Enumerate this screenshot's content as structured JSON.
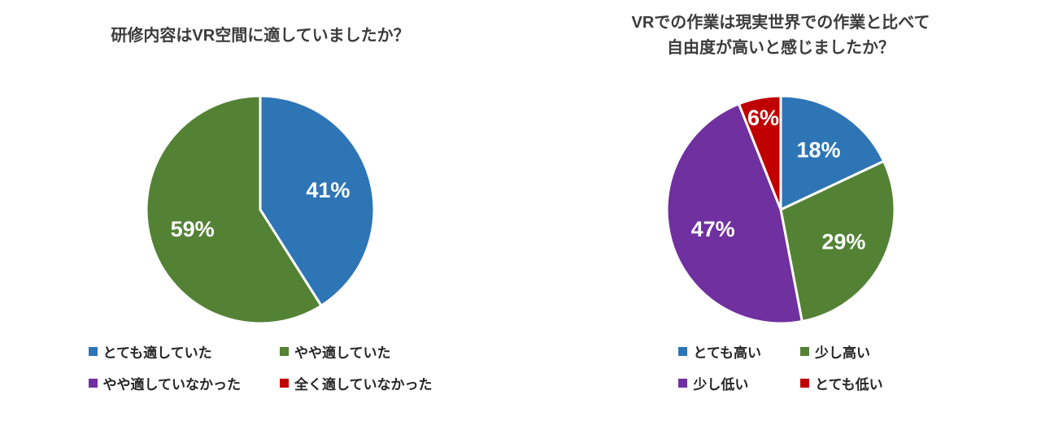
{
  "chart_data": [
    {
      "type": "pie",
      "title": "研修内容はVR空間に適していましたか？",
      "labels": [
        "とても適していた",
        "やや適していた",
        "やや適していなかった",
        "全く適していなかった"
      ],
      "values": [
        41,
        59,
        0,
        0
      ],
      "data_labels": [
        "41%",
        "59%",
        "",
        ""
      ],
      "colors": [
        "#2E75B6",
        "#548235",
        "#7030A0",
        "#C00000"
      ],
      "legend_position": "bottom",
      "label_color": "#ffffff"
    },
    {
      "type": "pie",
      "title": "VRでの作業は現実世界での作業と比べて\n自由度が高いと感じましたか？",
      "labels": [
        "とても高い",
        "少し高い",
        "少し低い",
        "とても低い"
      ],
      "values": [
        18,
        29,
        47,
        6
      ],
      "data_labels": [
        "18%",
        "29%",
        "47%",
        "6%"
      ],
      "colors": [
        "#2E75B6",
        "#548235",
        "#7030A0",
        "#C00000"
      ],
      "legend_position": "bottom",
      "label_color": "#ffffff"
    }
  ]
}
